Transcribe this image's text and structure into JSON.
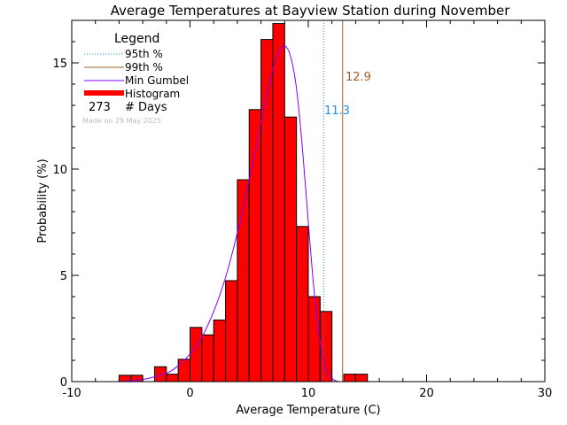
{
  "chart_data": {
    "type": "bar",
    "title": "Average Temperatures at Bayview Station during November",
    "xlabel": "Average Temperature (C)",
    "ylabel": "Probability (%)",
    "xlim": [
      -10,
      30
    ],
    "ylim": [
      0,
      17
    ],
    "x_ticks": [
      "-10",
      "0",
      "10",
      "20",
      "30"
    ],
    "y_ticks": [
      "0",
      "5",
      "10",
      "15"
    ],
    "bin_width": 1,
    "histogram": {
      "bin_starts": [
        -6,
        -5,
        -4,
        -3,
        -2,
        -1,
        0,
        1,
        2,
        3,
        4,
        5,
        6,
        7,
        8,
        9,
        10,
        11,
        12,
        13,
        14
      ],
      "values": [
        0.3,
        0.3,
        0.0,
        0.7,
        0.35,
        1.05,
        2.55,
        2.2,
        2.9,
        4.75,
        9.5,
        12.8,
        16.1,
        16.85,
        12.45,
        7.3,
        4.0,
        3.3,
        0.0,
        0.35,
        0.35
      ],
      "color": "#ff0000"
    },
    "gumbel_curve": {
      "name": "Min Gumbel",
      "color": "#8000ff",
      "x": [
        -6,
        -4,
        -2,
        -1,
        0,
        1,
        2,
        3,
        4,
        5,
        6,
        7,
        7.5,
        8,
        8.5,
        9,
        9.5,
        10,
        10.5,
        11,
        11.5,
        12,
        12.5
      ],
      "y": [
        0.0,
        0.1,
        0.4,
        0.75,
        1.3,
        2.1,
        3.3,
        4.9,
        7.0,
        9.5,
        12.2,
        14.7,
        15.5,
        15.8,
        15.3,
        13.8,
        11.0,
        7.5,
        4.2,
        1.8,
        0.6,
        0.15,
        0.0
      ]
    },
    "percentile_95": {
      "value": 11.3,
      "label": "11.3",
      "color": "#1e8fe6"
    },
    "percentile_99": {
      "value": 12.9,
      "label": "12.9",
      "color": "#a0602a"
    },
    "legend": {
      "title": "Legend",
      "placement": "top-left",
      "entries": [
        {
          "label": "95th %",
          "style": "dotted",
          "color": "#1e8fe6"
        },
        {
          "label": "99th %",
          "style": "solid",
          "color": "#a0602a"
        },
        {
          "label": "Min Gumbel",
          "style": "solid",
          "color": "#8000ff"
        },
        {
          "label": "Histogram",
          "style": "thick",
          "color": "#ff0000"
        }
      ],
      "days_count": "273",
      "days_label": "# Days"
    },
    "made_on": "Made on 29 May 2025",
    "grid": false
  }
}
